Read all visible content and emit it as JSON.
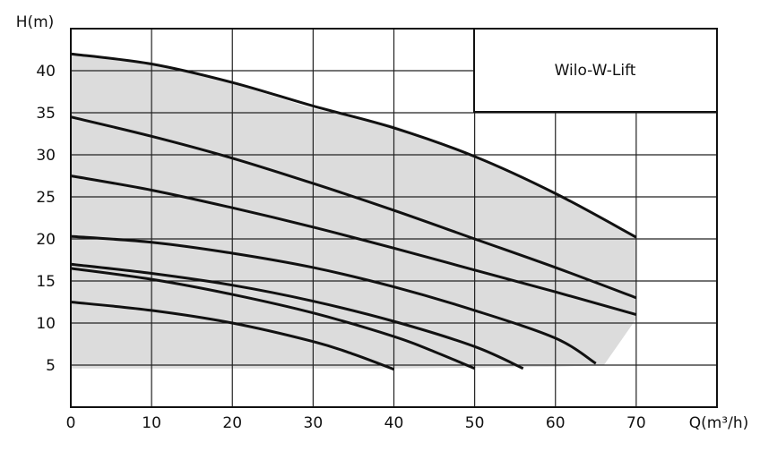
{
  "chart_data": {
    "type": "line",
    "title": "Wilo-W-Lift",
    "xlabel": "Q(m³/h)",
    "ylabel": "H(m)",
    "xlim": [
      0,
      80
    ],
    "ylim": [
      0,
      45
    ],
    "xticks": [
      "0",
      "10",
      "20",
      "30",
      "40",
      "50",
      "60",
      "70"
    ],
    "xtick_values": [
      0,
      10,
      20,
      30,
      40,
      50,
      60,
      70
    ],
    "yticks": [
      "5",
      "10",
      "15",
      "20",
      "25",
      "30",
      "35",
      "40"
    ],
    "ytick_values": [
      5,
      10,
      15,
      20,
      25,
      30,
      35,
      40
    ],
    "grid": true,
    "legend_position": "top-right",
    "operating_range": {
      "fill": "#dcdcdc",
      "points": [
        [
          0,
          42
        ],
        [
          10,
          40.8
        ],
        [
          20,
          38.5
        ],
        [
          30,
          35.5
        ],
        [
          40,
          33.5
        ],
        [
          50,
          29.8
        ],
        [
          60,
          25.3
        ],
        [
          70,
          20.2
        ],
        [
          70,
          10.5
        ],
        [
          66,
          5
        ],
        [
          60,
          4.8
        ],
        [
          50,
          4.7
        ],
        [
          40,
          4.6
        ],
        [
          0,
          4.6
        ]
      ]
    },
    "series": [
      {
        "x": [
          0,
          10,
          20,
          30,
          40,
          50,
          60,
          70
        ],
        "y": [
          42,
          40.8,
          38.6,
          35.8,
          33.2,
          29.8,
          25.4,
          20.2
        ]
      },
      {
        "x": [
          0,
          10,
          20,
          30,
          40,
          50,
          60,
          70
        ],
        "y": [
          34.5,
          32.2,
          29.6,
          26.6,
          23.4,
          20,
          16.6,
          13
        ]
      },
      {
        "x": [
          0,
          10,
          20,
          30,
          40,
          50,
          60,
          70
        ],
        "y": [
          27.5,
          25.8,
          23.7,
          21.4,
          18.9,
          16.3,
          13.7,
          11
        ]
      },
      {
        "x": [
          0,
          10,
          20,
          30,
          40,
          50,
          60,
          65
        ],
        "y": [
          20.3,
          19.6,
          18.3,
          16.6,
          14.3,
          11.5,
          8.2,
          5.2
        ]
      },
      {
        "x": [
          0,
          10,
          20,
          30,
          40,
          50,
          56
        ],
        "y": [
          17,
          15.9,
          14.5,
          12.6,
          10.2,
          7.2,
          4.6
        ]
      },
      {
        "x": [
          0,
          10,
          20,
          30,
          40,
          45,
          50
        ],
        "y": [
          16.5,
          15.2,
          13.4,
          11.2,
          8.4,
          6.6,
          4.6
        ]
      },
      {
        "x": [
          0,
          10,
          20,
          30,
          35,
          40
        ],
        "y": [
          12.5,
          11.5,
          10,
          7.8,
          6.3,
          4.5
        ]
      }
    ]
  }
}
